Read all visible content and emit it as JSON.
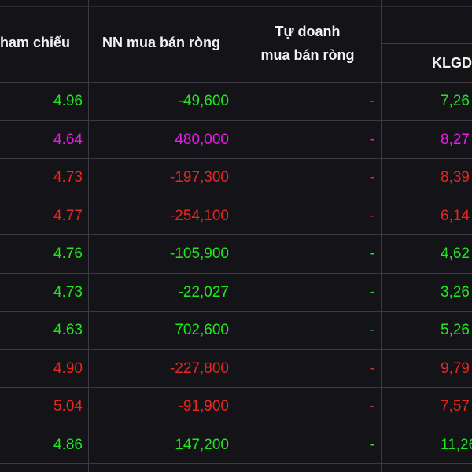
{
  "colors": {
    "up": "#1ee91e",
    "ceiling": "#e61ee6",
    "down": "#e8261f"
  },
  "header": {
    "ref_price": "ham chiếu",
    "nn_net": "NN mua bán ròng",
    "prop_net_line1": "Tự doanh",
    "prop_net_line2": "mua bán ròng",
    "klgd": "KLGD"
  },
  "rows": [
    {
      "ref": "4.96",
      "nn": "-49,600",
      "td": "-",
      "kl": "7,26",
      "color": "green"
    },
    {
      "ref": "4.64",
      "nn": "480,000",
      "td": "-",
      "kl": "8,27",
      "color": "purple"
    },
    {
      "ref": "4.73",
      "nn": "-197,300",
      "td": "-",
      "kl": "8,39",
      "color": "red"
    },
    {
      "ref": "4.77",
      "nn": "-254,100",
      "td": "-",
      "kl": "6,14",
      "color": "red"
    },
    {
      "ref": "4.76",
      "nn": "-105,900",
      "td": "-",
      "kl": "4,62",
      "color": "green"
    },
    {
      "ref": "4.73",
      "nn": "-22,027",
      "td": "-",
      "kl": "3,26",
      "color": "green"
    },
    {
      "ref": "4.63",
      "nn": "702,600",
      "td": "-",
      "kl": "5,26",
      "color": "green"
    },
    {
      "ref": "4.90",
      "nn": "-227,800",
      "td": "-",
      "kl": "9,79",
      "color": "red"
    },
    {
      "ref": "5.04",
      "nn": "-91,900",
      "td": "-",
      "kl": "7,57",
      "color": "red"
    },
    {
      "ref": "4.86",
      "nn": "147,200",
      "td": "-",
      "kl": "11,26",
      "color": "green"
    }
  ]
}
